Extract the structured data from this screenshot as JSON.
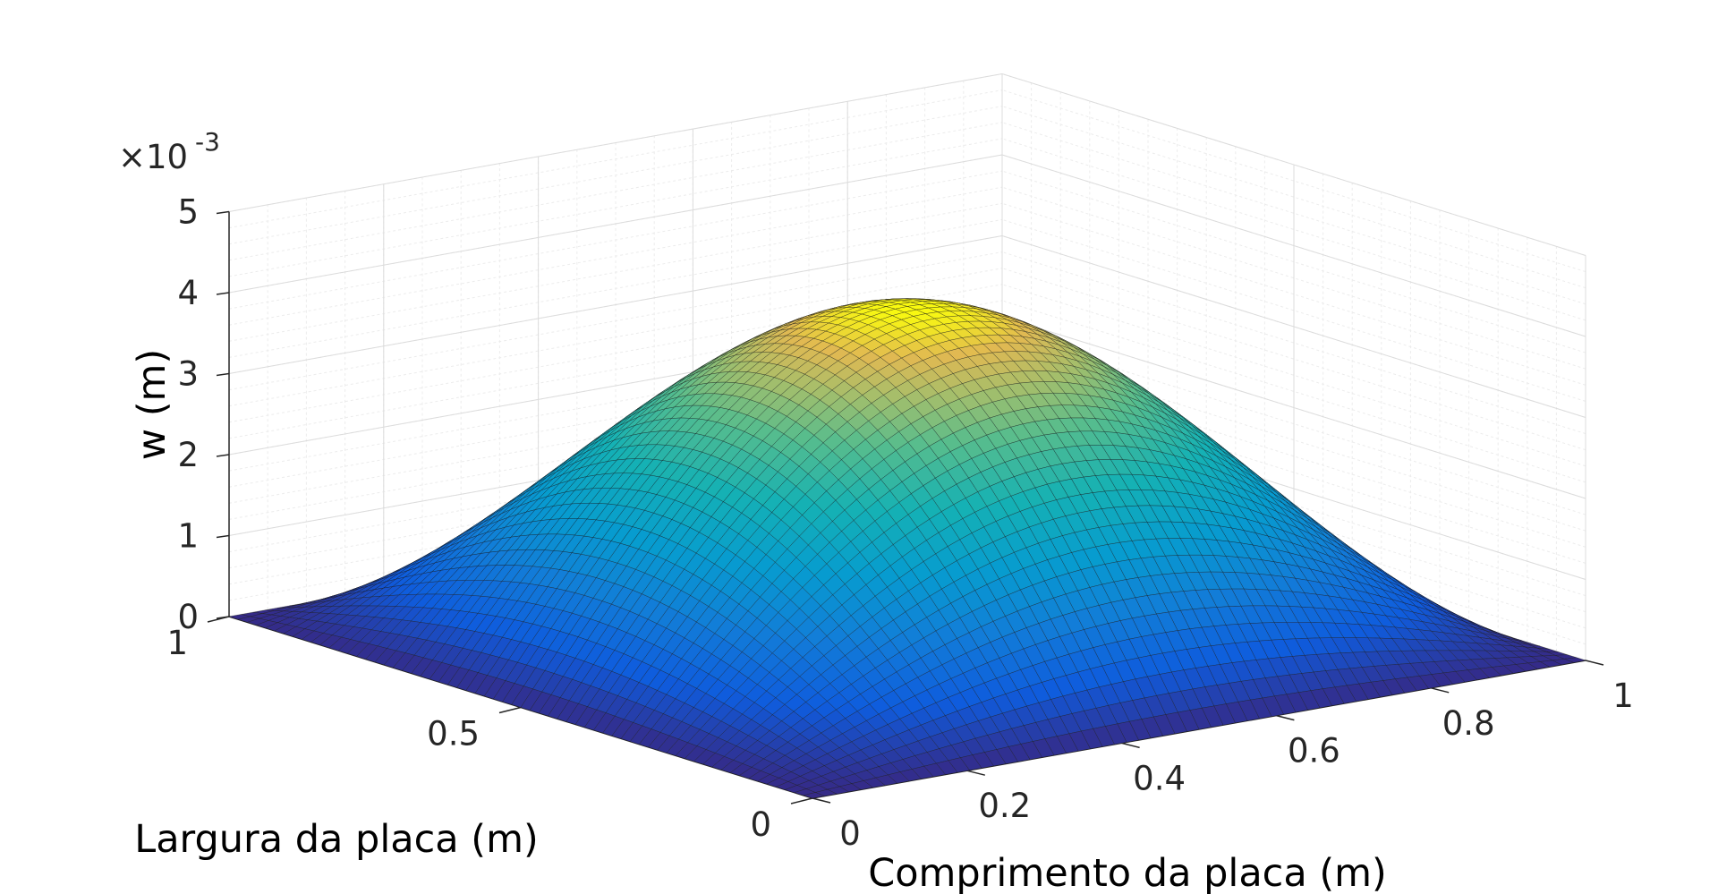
{
  "chart_data": {
    "type": "surface",
    "title": "",
    "function": "w(x,y) = w_max * sin(pi*x) * sin(pi*y)",
    "z_max": 0.0041,
    "x_axis": {
      "label": "Comprimento da placa (m)",
      "range": [
        0,
        1
      ],
      "ticks": [
        0,
        0.2,
        0.4,
        0.6,
        0.8,
        1
      ],
      "tick_labels": [
        "0",
        "0.2",
        "0.4",
        "0.6",
        "0.8",
        "1"
      ]
    },
    "y_axis": {
      "label": "Largura da placa (m)",
      "range": [
        0,
        1
      ],
      "ticks": [
        0,
        0.5,
        1
      ],
      "tick_labels": [
        "0",
        "0.5",
        "1"
      ]
    },
    "z_axis": {
      "label": "w (m)",
      "range": [
        0,
        0.005
      ],
      "ticks": [
        0,
        0.001,
        0.002,
        0.003,
        0.004,
        0.005
      ],
      "tick_labels": [
        "0",
        "1",
        "2",
        "3",
        "4",
        "5"
      ],
      "exponent_prefix": "×10",
      "exponent_power": "-3"
    },
    "grid": true,
    "colormap": "parula",
    "grid_resolution": 64
  }
}
